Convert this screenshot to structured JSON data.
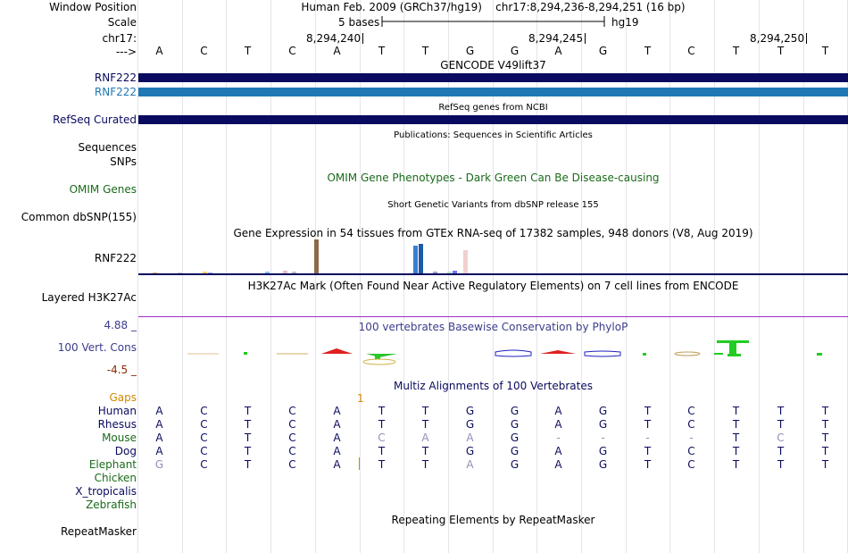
{
  "labels": [
    {
      "name": "window-position-label",
      "text": "Window Position",
      "color": "#000000"
    },
    {
      "name": "scale-label",
      "text": "Scale",
      "color": "#000000"
    },
    {
      "name": "chrom-label",
      "text": "chr17:",
      "color": "#000000"
    },
    {
      "name": "strand-label",
      "text": "--->",
      "color": "#000000"
    },
    {
      "name": "gencode-rnf222-label-1",
      "text": "RNF222",
      "color": "#0a0a60"
    },
    {
      "name": "gencode-rnf222-label-2",
      "text": "RNF222",
      "color": "#1f78b4"
    },
    {
      "name": "refseq-curated-label",
      "text": "RefSeq Curated",
      "color": "#0a0a60"
    },
    {
      "name": "sequences-label",
      "text": "Sequences",
      "color": "#000000"
    },
    {
      "name": "snps-label",
      "text": "SNPs",
      "color": "#000000"
    },
    {
      "name": "omim-genes-label",
      "text": "OMIM Genes",
      "color": "#1a6b1a"
    },
    {
      "name": "common-dbsnp-label",
      "text": "Common dbSNP(155)",
      "color": "#000000"
    },
    {
      "name": "gtex-rnf222-label",
      "text": "RNF222",
      "color": "#000000"
    },
    {
      "name": "layered-h3k27ac-label",
      "text": "Layered H3K27Ac",
      "color": "#000000"
    },
    {
      "name": "cons-max-label",
      "text": "4.88 _",
      "color": "#3c3c8c"
    },
    {
      "name": "cons-track-label",
      "text": "100 Vert. Cons",
      "color": "#3c3c8c"
    },
    {
      "name": "cons-min-label",
      "text": "-4.5 _",
      "color": "#8b2a00"
    },
    {
      "name": "gaps-label",
      "text": "Gaps",
      "color": "#d08a00"
    },
    {
      "name": "species-human-label",
      "text": "Human",
      "color": "#0a0a60"
    },
    {
      "name": "species-rhesus-label",
      "text": "Rhesus",
      "color": "#0a0a60"
    },
    {
      "name": "species-mouse-label",
      "text": "Mouse",
      "color": "#1a6b1a"
    },
    {
      "name": "species-dog-label",
      "text": "Dog",
      "color": "#0a0a60"
    },
    {
      "name": "species-elephant-label",
      "text": "Elephant",
      "color": "#1a6b1a"
    },
    {
      "name": "species-chicken-label",
      "text": "Chicken",
      "color": "#1a6b1a"
    },
    {
      "name": "species-xtropicalis-label",
      "text": "X_tropicalis",
      "color": "#0a0a60"
    },
    {
      "name": "species-zebrafish-label",
      "text": "Zebrafish",
      "color": "#1a6b1a"
    },
    {
      "name": "repeatmasker-label",
      "text": "RepeatMasker",
      "color": "#000000"
    }
  ],
  "header": {
    "assembly": "Human Feb. 2009 (GRCh37/hg19)",
    "position": "chr17:8,294,236-8,294,251 (16 bp)",
    "scale_text": "5 bases",
    "db": "hg19",
    "ticks": [
      "8,294,240",
      "8,294,245",
      "8,294,250"
    ]
  },
  "bases": [
    "A",
    "C",
    "T",
    "C",
    "A",
    "T",
    "T",
    "G",
    "G",
    "A",
    "G",
    "T",
    "C",
    "T",
    "T",
    "T"
  ],
  "tracks": {
    "gencode_title": "GENCODE V49lift37",
    "refseq_title": "RefSeq genes from NCBI",
    "publications_title": "Publications: Sequences in Scientific Articles",
    "omim_title": "OMIM Gene Phenotypes - Dark Green Can Be Disease-causing",
    "dbsnp_title": "Short Genetic Variants from dbSNP release 155",
    "gtex_title": "Gene Expression in 54 tissues from GTEx RNA-seq of 17382 samples, 948 donors (V8, Aug 2019)",
    "h3k27ac_title": "H3K27Ac Mark (Often Found Near Active Regulatory Elements) on 7 cell lines from ENCODE",
    "cons_title": "100 vertebrates Basewise Conservation by PhyloP",
    "multiz_title": "Multiz Alignments of 100 Vertebrates",
    "gap_count": "1",
    "repeat_title": "Repeating Elements by RepeatMasker"
  },
  "colors": {
    "gencode_dark": "#0a0a60",
    "gencode_light": "#1f78b4",
    "refseq": "#0a0a60",
    "h3k27ac_line": "#9b30c8",
    "gap_mark": "#d08a00"
  },
  "alignment": [
    {
      "species": "Human",
      "row": [
        "A",
        "C",
        "T",
        "C",
        "A",
        "T",
        "T",
        "G",
        "G",
        "A",
        "G",
        "T",
        "C",
        "T",
        "T",
        "T"
      ]
    },
    {
      "species": "Rhesus",
      "row": [
        "A",
        "C",
        "T",
        "C",
        "A",
        "T",
        "T",
        "G",
        "G",
        "A",
        "G",
        "T",
        "C",
        "T",
        "T",
        "T"
      ]
    },
    {
      "species": "Mouse",
      "row": [
        "A",
        "C",
        "T",
        "C",
        "A",
        "C",
        "A",
        "A",
        "G",
        "-",
        "-",
        "-",
        "-",
        "T",
        "C",
        "T"
      ]
    },
    {
      "species": "Dog",
      "row": [
        "A",
        "C",
        "T",
        "C",
        "A",
        "T",
        "T",
        "G",
        "G",
        "A",
        "G",
        "T",
        "C",
        "T",
        "T",
        "T"
      ]
    },
    {
      "species": "Elephant",
      "row": [
        "G",
        "C",
        "T",
        "C",
        "A",
        "T",
        "T",
        "A",
        "G",
        "A",
        "G",
        "T",
        "C",
        "T",
        "T",
        "T"
      ]
    }
  ],
  "alignment_mismatch": {
    "Mouse": [
      5,
      6,
      7,
      9,
      10,
      11,
      12,
      14
    ],
    "Elephant": [
      0,
      7
    ]
  },
  "gtex_bars": [
    {
      "tissue_color": "#f0b060",
      "value": 1
    },
    {
      "tissue_color": "#c8c8c8",
      "value": 1
    },
    {
      "tissue_color": "#ffd070",
      "value": 2
    },
    {
      "tissue_color": "#a0a0ff",
      "value": 1
    },
    {
      "tissue_color": "#80c0ff",
      "value": 2
    },
    {
      "tissue_color": "#e0c0c0",
      "value": 3
    },
    {
      "tissue_color": "#c0c0c0",
      "value": 2
    },
    {
      "tissue_color": "#8b6b4b",
      "value": 38
    },
    {
      "tissue_color": "#3a7fd0",
      "value": 31
    },
    {
      "tissue_color": "#1e5aa8",
      "value": 33
    },
    {
      "tissue_color": "#a0a0d0",
      "value": 2
    },
    {
      "tissue_color": "#c0e0c0",
      "value": 2
    },
    {
      "tissue_color": "#7070ff",
      "value": 3
    },
    {
      "tissue_color": "#f0d0d0",
      "value": 26
    }
  ]
}
